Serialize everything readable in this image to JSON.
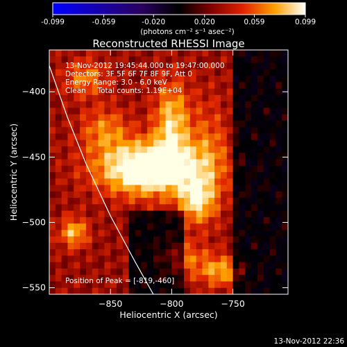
{
  "colorbar": {
    "ticks": [
      "-0.099",
      "-0.059",
      "-0.020",
      "0.020",
      "0.059",
      "0.099"
    ],
    "tick_values": [
      -0.099,
      -0.059,
      -0.02,
      0.02,
      0.059,
      0.099
    ],
    "range": [
      -0.099,
      0.099
    ],
    "units": "(photons cm⁻² s⁻¹ asec⁻²)",
    "colors": [
      "#0000ff",
      "#3a0080",
      "#000000",
      "#7a0000",
      "#e02000",
      "#ffa000",
      "#ffffff"
    ]
  },
  "chart_data": {
    "type": "heatmap",
    "title": "Reconstructed RHESSI Image",
    "xlabel": "Heliocentric X (arcsec)",
    "ylabel": "Heliocentric Y (arcsec)",
    "xlim": [
      -900,
      -705
    ],
    "ylim": [
      -555,
      -368
    ],
    "x_ticks": [
      -850,
      -800,
      -750
    ],
    "x_tick_labels": [
      "−850",
      "−800",
      "−750"
    ],
    "y_ticks": [
      -400,
      -450,
      -500,
      -550
    ],
    "y_tick_labels": [
      "−400",
      "−450",
      "−500",
      "−550"
    ],
    "peak": [
      -819,
      -460
    ],
    "limb": [
      [
        -900,
        -380
      ],
      [
        -885,
        -420
      ],
      [
        -870,
        -455
      ],
      [
        -850,
        -495
      ],
      [
        -830,
        -530
      ],
      [
        -815,
        -555
      ]
    ],
    "blobs": [
      {
        "x": -819,
        "y": -460,
        "sx": 28,
        "sy": 14,
        "a": 1.0
      },
      {
        "x": -800,
        "y": -425,
        "sx": 10,
        "sy": 22,
        "a": 0.55
      },
      {
        "x": -780,
        "y": -485,
        "sx": 10,
        "sy": 12,
        "a": 0.55
      },
      {
        "x": -855,
        "y": -430,
        "sx": 14,
        "sy": 12,
        "a": 0.35
      },
      {
        "x": -770,
        "y": -450,
        "sx": 12,
        "sy": 30,
        "a": 0.3
      },
      {
        "x": -880,
        "y": -510,
        "sx": 8,
        "sy": 8,
        "a": 0.5
      },
      {
        "x": -760,
        "y": -540,
        "sx": 12,
        "sy": 8,
        "a": 0.45
      },
      {
        "x": -870,
        "y": -390,
        "sx": 12,
        "sy": 10,
        "a": 0.35
      },
      {
        "x": -790,
        "y": -530,
        "sx": 14,
        "sy": 10,
        "a": 0.3
      }
    ],
    "annotations": {
      "time": "13-Nov-2012 19:45:44.000 to 19:47:00.000",
      "detectors": "Detectors: 3F 5F 6F 7F 8F 9F, Att 0",
      "energy": "Energy Range: 3.0 - 6.0 keV",
      "clean": "Clean     Total counts: 1.19E+04",
      "peak_label": "Position of Peak = [-819,-460]"
    }
  },
  "footer": {
    "timestamp": "13-Nov-2012 22:36"
  }
}
